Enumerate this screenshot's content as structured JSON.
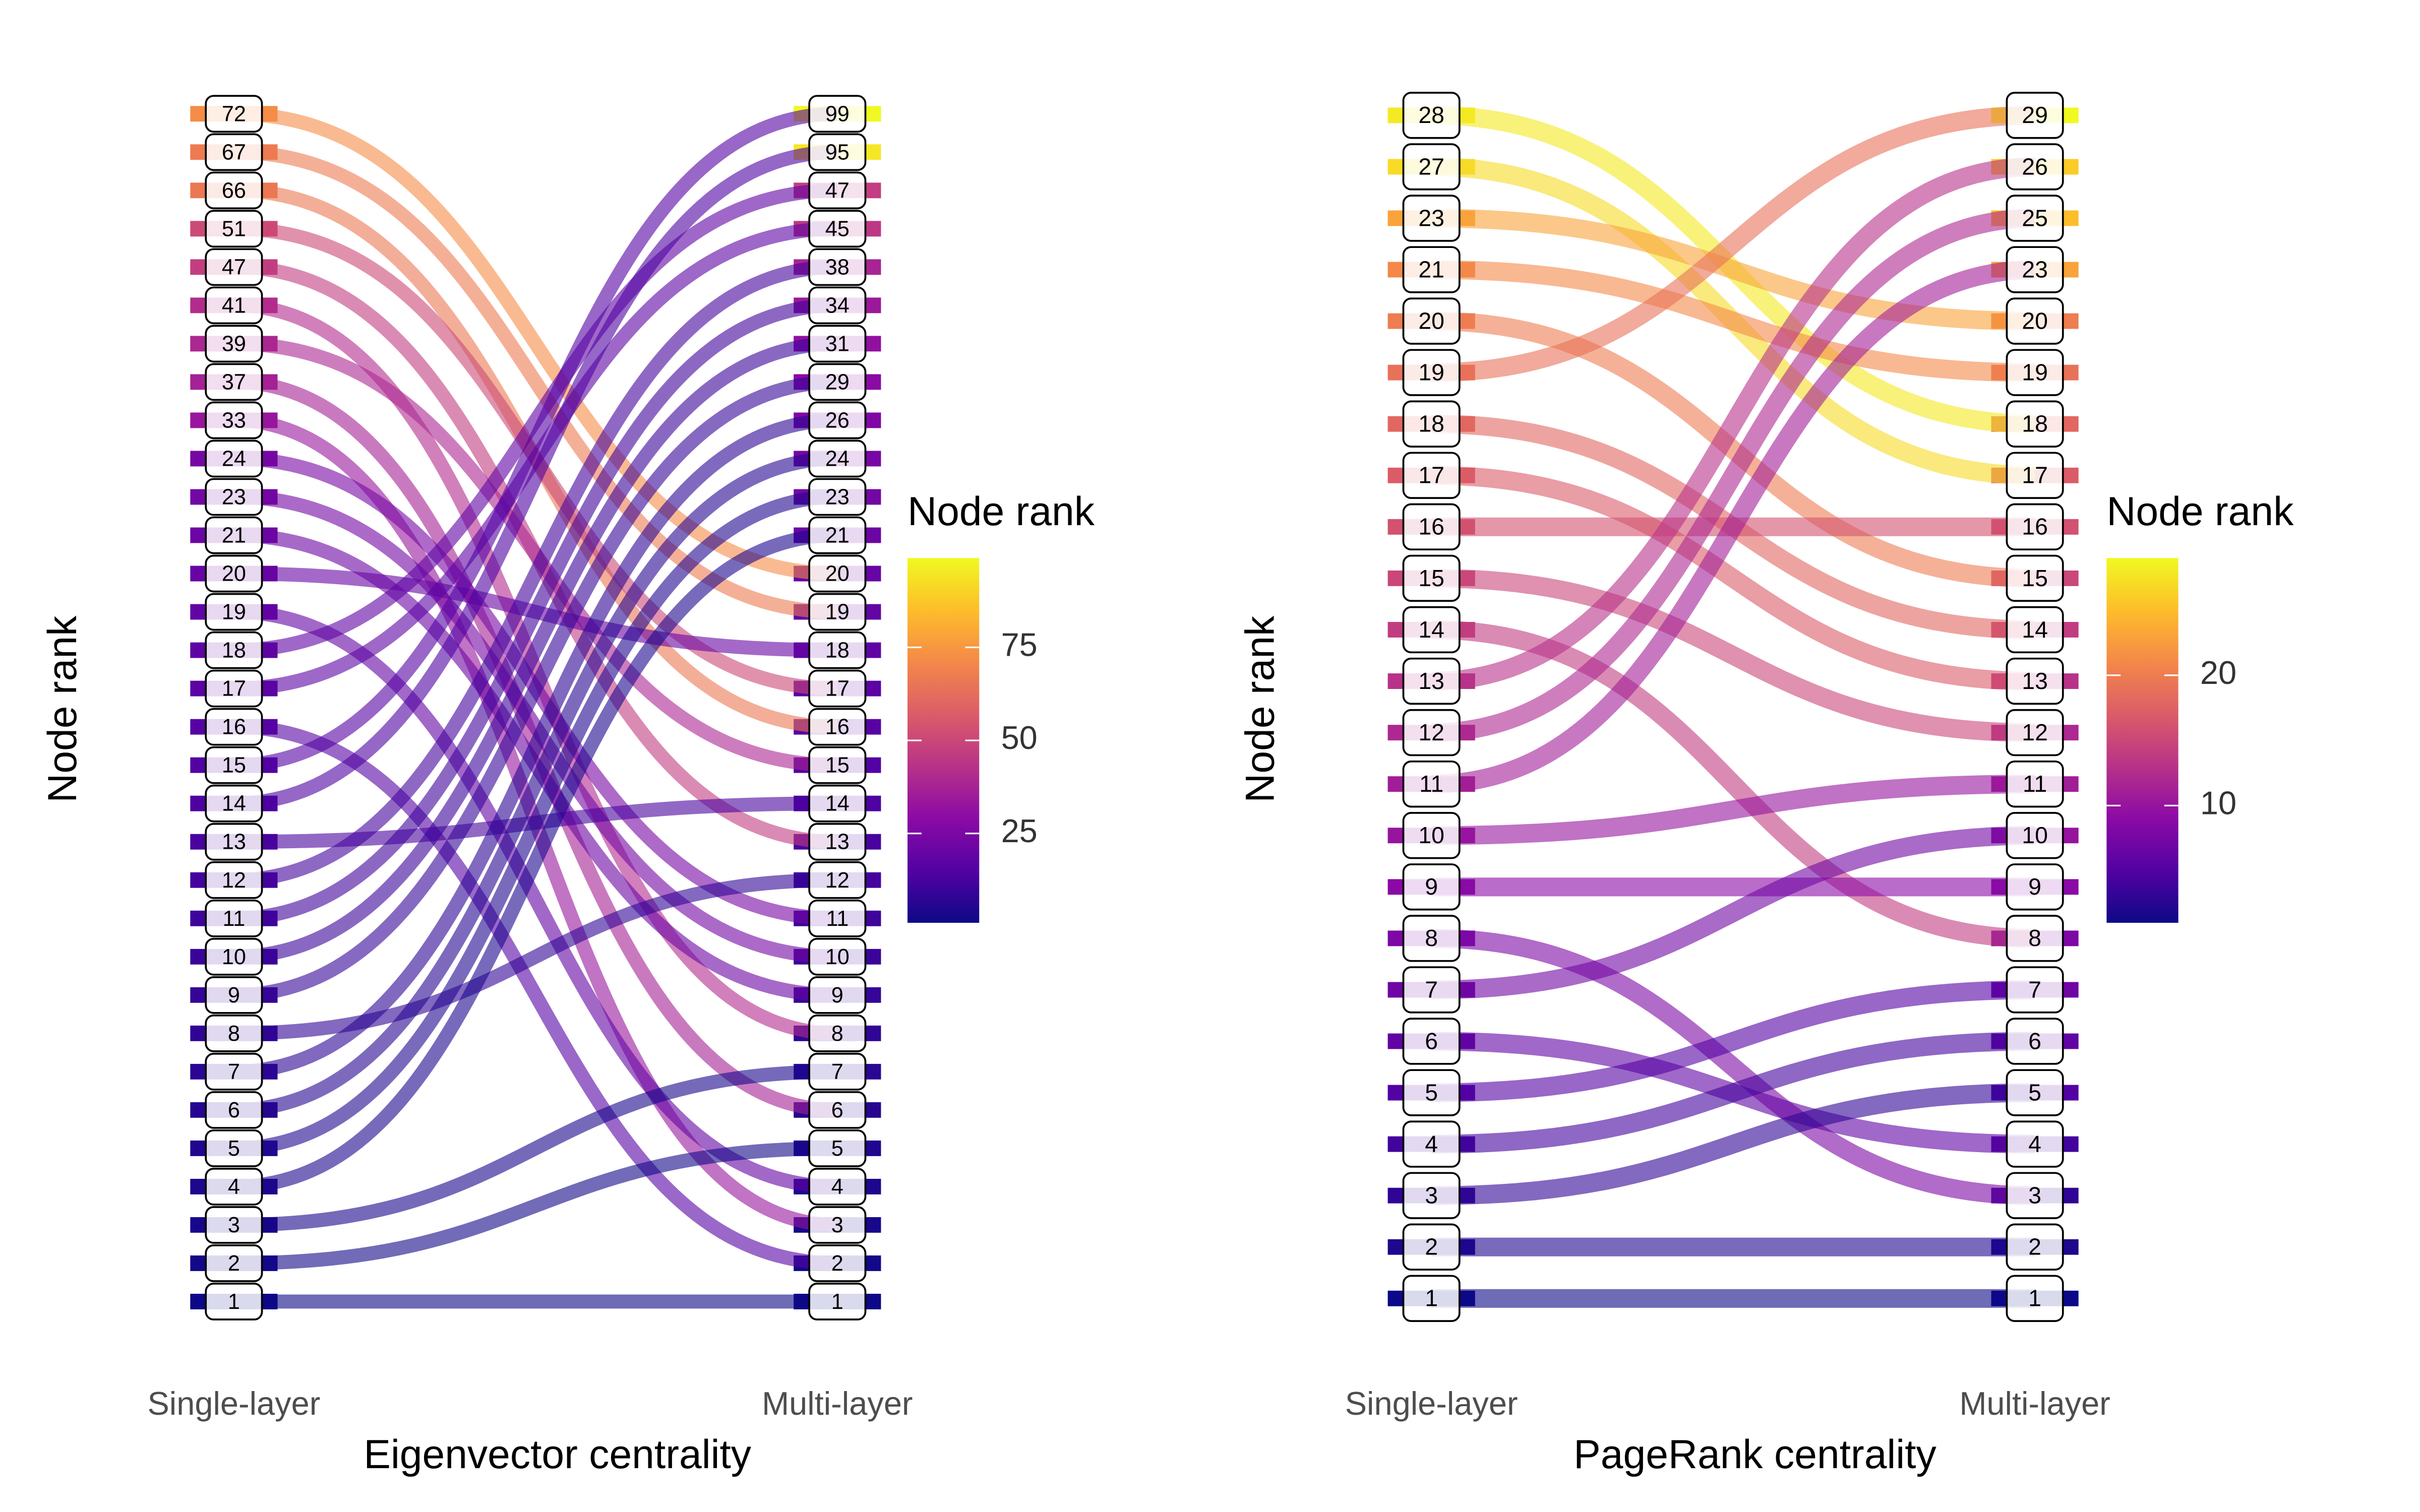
{
  "chart_data": [
    {
      "type": "bump",
      "title": "Eigenvector centrality",
      "ylabel": "Node rank",
      "x": [
        "Single-layer",
        "Multi-layer"
      ],
      "colormap": "plasma",
      "legend_title": "Node rank",
      "colorlim": [
        1,
        99
      ],
      "colorticks": [
        25,
        50,
        75
      ],
      "nodes": [
        {
          "single": 72,
          "multi": 20
        },
        {
          "single": 67,
          "multi": 19
        },
        {
          "single": 66,
          "multi": 16
        },
        {
          "single": 51,
          "multi": 17
        },
        {
          "single": 47,
          "multi": 13
        },
        {
          "single": 41,
          "multi": 8
        },
        {
          "single": 39,
          "multi": 15
        },
        {
          "single": 37,
          "multi": 6
        },
        {
          "single": 33,
          "multi": 3
        },
        {
          "single": 24,
          "multi": 11
        },
        {
          "single": 23,
          "multi": 10
        },
        {
          "single": 21,
          "multi": 9
        },
        {
          "single": 20,
          "multi": 18
        },
        {
          "single": 19,
          "multi": 4
        },
        {
          "single": 18,
          "multi": 47
        },
        {
          "single": 17,
          "multi": 45
        },
        {
          "single": 16,
          "multi": 2
        },
        {
          "single": 15,
          "multi": 99
        },
        {
          "single": 14,
          "multi": 95
        },
        {
          "single": 13,
          "multi": 14
        },
        {
          "single": 12,
          "multi": 38
        },
        {
          "single": 11,
          "multi": 34
        },
        {
          "single": 10,
          "multi": 31
        },
        {
          "single": 9,
          "multi": 29
        },
        {
          "single": 8,
          "multi": 12
        },
        {
          "single": 7,
          "multi": 26
        },
        {
          "single": 6,
          "multi": 24
        },
        {
          "single": 5,
          "multi": 23
        },
        {
          "single": 4,
          "multi": 21
        },
        {
          "single": 3,
          "multi": 7
        },
        {
          "single": 2,
          "multi": 5
        },
        {
          "single": 1,
          "multi": 1
        }
      ]
    },
    {
      "type": "bump",
      "title": "PageRank centrality",
      "ylabel": "Node rank",
      "x": [
        "Single-layer",
        "Multi-layer"
      ],
      "colormap": "plasma",
      "legend_title": "Node rank",
      "colorlim": [
        1,
        29
      ],
      "colorticks": [
        10,
        20
      ],
      "nodes": [
        {
          "single": 28,
          "multi": 18
        },
        {
          "single": 27,
          "multi": 17
        },
        {
          "single": 23,
          "multi": 20
        },
        {
          "single": 21,
          "multi": 19
        },
        {
          "single": 20,
          "multi": 15
        },
        {
          "single": 19,
          "multi": 29
        },
        {
          "single": 18,
          "multi": 14
        },
        {
          "single": 17,
          "multi": 13
        },
        {
          "single": 16,
          "multi": 16
        },
        {
          "single": 15,
          "multi": 12
        },
        {
          "single": 14,
          "multi": 8
        },
        {
          "single": 13,
          "multi": 26
        },
        {
          "single": 12,
          "multi": 25
        },
        {
          "single": 11,
          "multi": 23
        },
        {
          "single": 10,
          "multi": 11
        },
        {
          "single": 9,
          "multi": 9
        },
        {
          "single": 8,
          "multi": 3
        },
        {
          "single": 7,
          "multi": 10
        },
        {
          "single": 6,
          "multi": 4
        },
        {
          "single": 5,
          "multi": 7
        },
        {
          "single": 4,
          "multi": 6
        },
        {
          "single": 3,
          "multi": 5
        },
        {
          "single": 2,
          "multi": 2
        },
        {
          "single": 1,
          "multi": 1
        }
      ]
    }
  ]
}
